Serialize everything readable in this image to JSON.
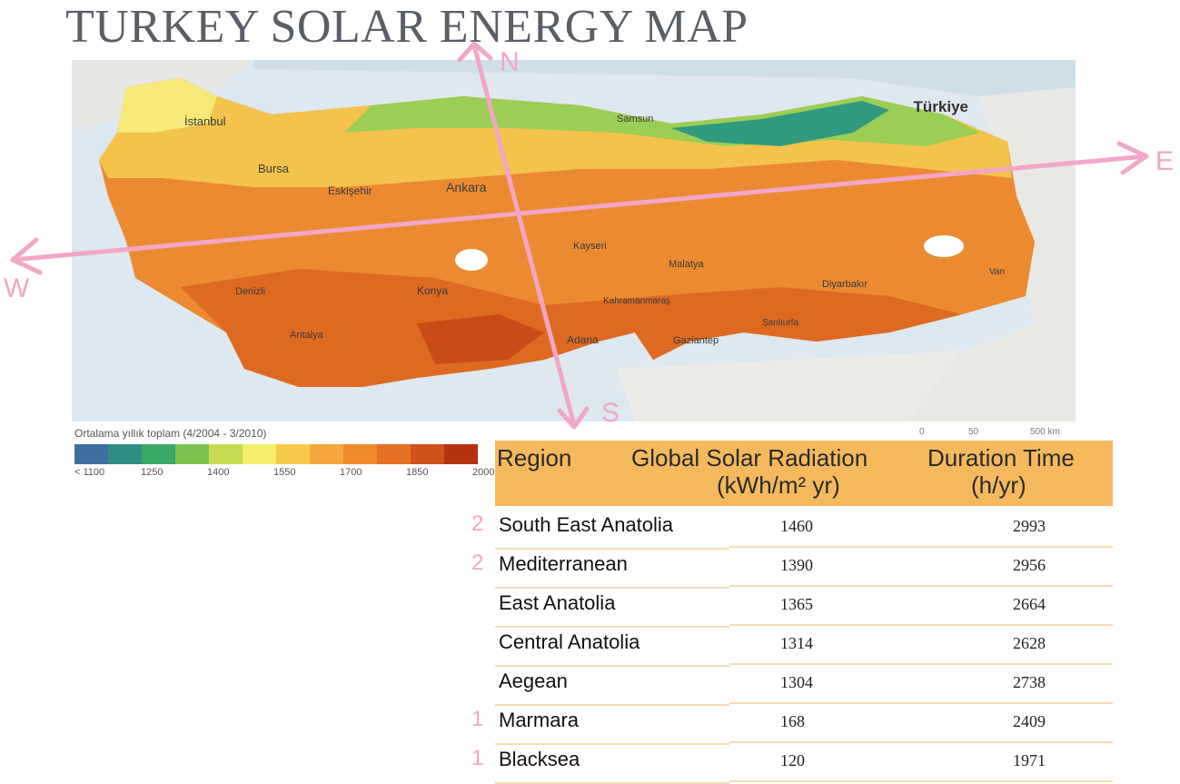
{
  "title": "TURKEY SOLAR ENERGY MAP",
  "map": {
    "country_label": "Türkiye",
    "cities": [
      {
        "name": "İstanbul"
      },
      {
        "name": "Bursa"
      },
      {
        "name": "Eskişehir"
      },
      {
        "name": "Ankara"
      },
      {
        "name": "Samsun"
      },
      {
        "name": "Kayseri"
      },
      {
        "name": "Malatya"
      },
      {
        "name": "Diyarbakır"
      },
      {
        "name": "Konya"
      },
      {
        "name": "Denizli"
      },
      {
        "name": "Antalya"
      },
      {
        "name": "Adana"
      },
      {
        "name": "Kahramanmaraş"
      },
      {
        "name": "Gaziantep"
      },
      {
        "name": "Şanlıurfa"
      },
      {
        "name": "Van"
      }
    ],
    "compass": {
      "north": "N",
      "south": "S",
      "east": "E",
      "west": "W"
    },
    "arrow_color": "#f2a6c7",
    "scale_labels": [
      "0",
      "50",
      "500 km"
    ]
  },
  "legend": {
    "title": "Ortalama yıllık toplam (4/2004 - 3/2010)",
    "colors": [
      "#3d6fa3",
      "#2f8e86",
      "#3aa866",
      "#7dc24f",
      "#c7dc52",
      "#f4ed6a",
      "#f7c94a",
      "#f3a73c",
      "#ef8a2c",
      "#e56f23",
      "#d2511b",
      "#b7330f"
    ],
    "ticks": [
      "< 1100",
      "1250",
      "1400",
      "1550",
      "1700",
      "1850",
      "2000"
    ]
  },
  "table": {
    "headers": {
      "region": "Region",
      "radiation_line1": "Global Solar Radiation",
      "radiation_line2": "(kWh/m² yr)",
      "duration_line1": "Duration Time",
      "duration_line2": "(h/yr)"
    },
    "header_color": "#f5b95d",
    "rows": [
      {
        "rank": "2",
        "region": "South East Anatolia",
        "radiation": "1460",
        "duration": "2993"
      },
      {
        "rank": "2",
        "region": "Mediterranean",
        "radiation": "1390",
        "duration": "2956"
      },
      {
        "rank": "",
        "region": "East Anatolia",
        "radiation": "1365",
        "duration": "2664"
      },
      {
        "rank": "",
        "region": "Central Anatolia",
        "radiation": "1314",
        "duration": "2628"
      },
      {
        "rank": "",
        "region": "Aegean",
        "radiation": "1304",
        "duration": "2738"
      },
      {
        "rank": "1",
        "region": "Marmara",
        "radiation": "168",
        "duration": "2409"
      },
      {
        "rank": "1",
        "region": "Blacksea",
        "radiation": "120",
        "duration": "1971"
      }
    ]
  }
}
